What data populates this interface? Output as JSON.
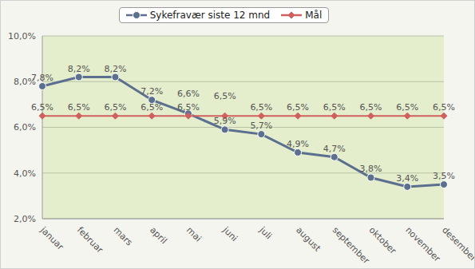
{
  "chart_data": {
    "type": "line",
    "categories": [
      "januar",
      "februar",
      "mars",
      "april",
      "mai",
      "juni",
      "juli",
      "august",
      "september",
      "oktober",
      "november",
      "desember"
    ],
    "series": [
      {
        "name": "Sykefravær siste 12 mnd",
        "color": "#5b6f8f",
        "marker": "circle",
        "values": [
          7.8,
          8.2,
          8.2,
          7.2,
          6.6,
          5.9,
          5.7,
          4.9,
          4.7,
          3.8,
          3.4,
          3.5
        ],
        "value_labels": [
          "7,8%",
          "8,2%",
          "8,2%",
          "7,2%",
          "6,6%",
          "5,9%",
          "5,7%",
          "4,9%",
          "4,7%",
          "3,8%",
          "3,4%",
          "3,5%"
        ]
      },
      {
        "name": "Mål",
        "color": "#d0605e",
        "marker": "diamond",
        "values": [
          6.5,
          6.5,
          6.5,
          6.5,
          6.5,
          6.5,
          6.5,
          6.5,
          6.5,
          6.5,
          6.5,
          6.5
        ],
        "value_labels": [
          "6,5%",
          "6,5%",
          "6,5%",
          "6,5%",
          "6,5%",
          "6,5%",
          "6,5%",
          "6,5%",
          "6,5%",
          "6,5%",
          "6,5%",
          "6,5%"
        ]
      }
    ],
    "ylim": [
      2,
      10
    ],
    "yticks": [
      {
        "value": 2,
        "label": "2,0%"
      },
      {
        "value": 4,
        "label": "4,0%"
      },
      {
        "value": 6,
        "label": "6,0%"
      },
      {
        "value": 8,
        "label": "8,0%"
      },
      {
        "value": 10,
        "label": "10,0%"
      }
    ],
    "grid": true,
    "legend": "top",
    "data_labels": true
  }
}
